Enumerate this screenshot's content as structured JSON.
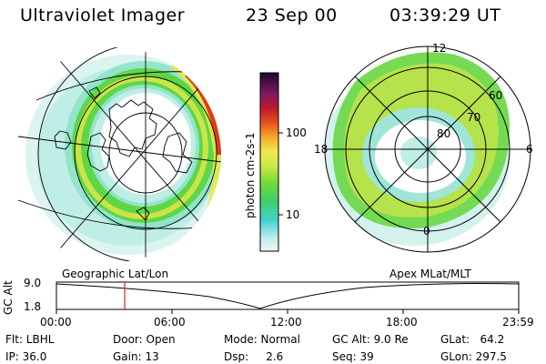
{
  "header": {
    "instrument": "Ultraviolet Imager",
    "date": "23 Sep 00",
    "time": "03:39:29 UT"
  },
  "colorbar": {
    "label": "photon cm-2s-1",
    "ticks": [
      "100",
      "10"
    ],
    "scale": "log"
  },
  "left_panel": {
    "projection_label": "Geographic Lat/Lon"
  },
  "right_panel": {
    "projection_label": "Apex MLat/MLT",
    "mlt_labels": {
      "top": "12",
      "left": "18",
      "right": "6",
      "bottom": "0"
    },
    "lat_labels": [
      "60",
      "70",
      "80"
    ]
  },
  "altitude_plot": {
    "ylabel": "GC Alt",
    "ymax_label": "9.0",
    "ymin_label": "1.8",
    "x_ticks": [
      "00:00",
      "06:00",
      "12:00",
      "18:00",
      "23:59"
    ],
    "marker_time": "03:39"
  },
  "info": {
    "flt": "Flt: LBHL",
    "ip": "IP: 36.0",
    "door": "Door: Open",
    "gain": "Gain: 13",
    "mode": "Mode: Normal",
    "dsp": "Dsp:     2.6",
    "gcalt": "GC Alt: 9.0 Re",
    "seq": "Seq: 39",
    "glat": "GLat:   64.2",
    "glon": "GLon: 297.5"
  },
  "colors": {
    "aurora_green": "#5cd33a",
    "aurora_yellow": "#e7e94a",
    "aurora_cyan": "#3fd6d0",
    "aurora_red": "#e03a1a",
    "marker_red": "#e02020"
  }
}
